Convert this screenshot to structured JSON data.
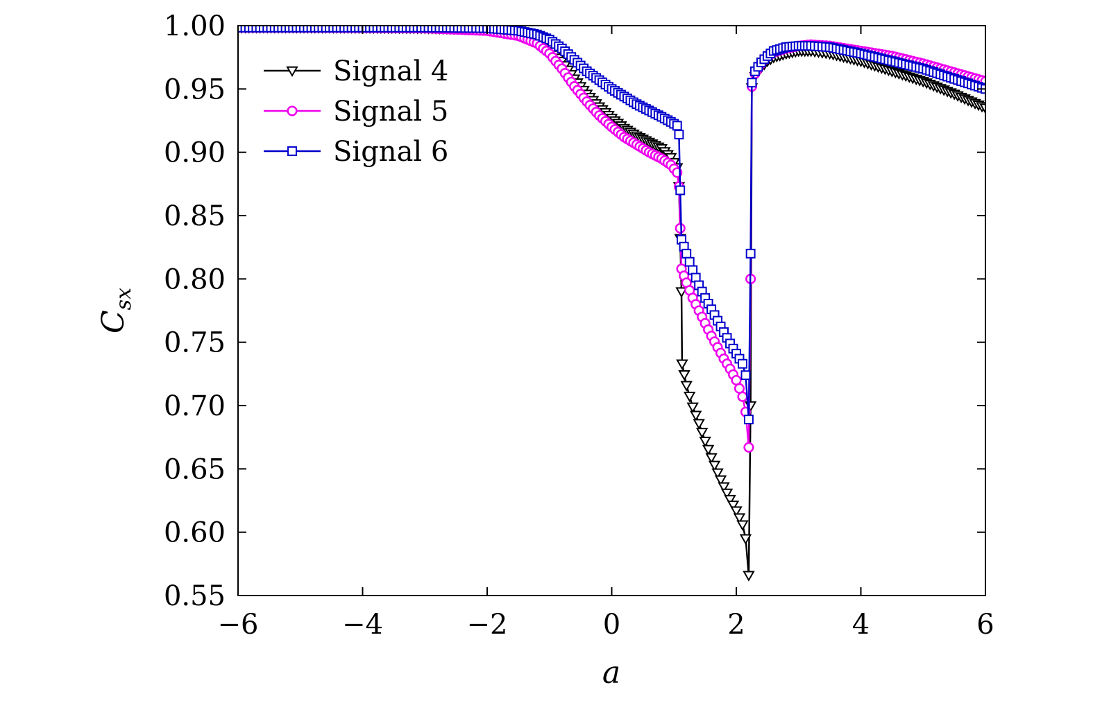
{
  "chart_data": {
    "type": "line",
    "xlabel": "a",
    "ylabel": {
      "main": "C",
      "sub": "sx"
    },
    "xlim": [
      -6,
      6
    ],
    "ylim": [
      0.55,
      1.0
    ],
    "xticks": [
      -6,
      -4,
      -2,
      0,
      2,
      4,
      6
    ],
    "xtick_labels": [
      "−6",
      "−4",
      "−2",
      "0",
      "2",
      "4",
      "6"
    ],
    "yticks": [
      0.55,
      0.6,
      0.65,
      0.7,
      0.75,
      0.8,
      0.85,
      0.9,
      0.95,
      1.0
    ],
    "ytick_labels": [
      "0.55",
      "0.60",
      "0.65",
      "0.70",
      "0.75",
      "0.80",
      "0.85",
      "0.90",
      "0.95",
      "1.00"
    ],
    "legend_position": "top-left",
    "grid": false,
    "series": [
      {
        "name": "Signal 4",
        "color": "#000000",
        "marker": "triangle-down",
        "points": [
          [
            -6.0,
            0.9985
          ],
          [
            -5.0,
            0.9985
          ],
          [
            -4.0,
            0.9983
          ],
          [
            -3.0,
            0.998
          ],
          [
            -2.0,
            0.997
          ],
          [
            -1.5,
            0.994
          ],
          [
            -1.2,
            0.989
          ],
          [
            -1.0,
            0.982
          ],
          [
            -0.8,
            0.972
          ],
          [
            -0.6,
            0.958
          ],
          [
            -0.4,
            0.946
          ],
          [
            -0.2,
            0.936
          ],
          [
            0.0,
            0.927
          ],
          [
            0.2,
            0.919
          ],
          [
            0.4,
            0.913
          ],
          [
            0.6,
            0.908
          ],
          [
            0.8,
            0.903
          ],
          [
            0.95,
            0.896
          ],
          [
            1.05,
            0.888
          ],
          [
            1.08,
            0.873
          ],
          [
            1.1,
            0.832
          ],
          [
            1.12,
            0.79
          ],
          [
            1.13,
            0.733
          ],
          [
            1.2,
            0.716
          ],
          [
            1.3,
            0.699
          ],
          [
            1.4,
            0.686
          ],
          [
            1.5,
            0.672
          ],
          [
            1.6,
            0.659
          ],
          [
            1.7,
            0.647
          ],
          [
            1.8,
            0.636
          ],
          [
            1.9,
            0.626
          ],
          [
            2.0,
            0.617
          ],
          [
            2.1,
            0.606
          ],
          [
            2.15,
            0.595
          ],
          [
            2.2,
            0.566
          ],
          [
            2.23,
            0.7
          ],
          [
            2.25,
            0.951
          ],
          [
            2.3,
            0.96
          ],
          [
            2.4,
            0.967
          ],
          [
            2.5,
            0.972
          ],
          [
            2.6,
            0.975
          ],
          [
            2.8,
            0.978
          ],
          [
            3.0,
            0.98
          ],
          [
            3.2,
            0.98
          ],
          [
            3.5,
            0.978
          ],
          [
            4.0,
            0.972
          ],
          [
            4.5,
            0.964
          ],
          [
            5.0,
            0.956
          ],
          [
            5.5,
            0.946
          ],
          [
            6.0,
            0.935
          ]
        ]
      },
      {
        "name": "Signal 5",
        "color": "#ee00ee",
        "marker": "circle",
        "points": [
          [
            -6.0,
            0.9985
          ],
          [
            -5.0,
            0.9985
          ],
          [
            -4.0,
            0.9983
          ],
          [
            -3.0,
            0.998
          ],
          [
            -2.0,
            0.996
          ],
          [
            -1.5,
            0.992
          ],
          [
            -1.2,
            0.986
          ],
          [
            -1.0,
            0.978
          ],
          [
            -0.8,
            0.966
          ],
          [
            -0.6,
            0.952
          ],
          [
            -0.4,
            0.94
          ],
          [
            -0.2,
            0.929
          ],
          [
            0.0,
            0.92
          ],
          [
            0.2,
            0.912
          ],
          [
            0.4,
            0.906
          ],
          [
            0.6,
            0.9
          ],
          [
            0.8,
            0.895
          ],
          [
            0.95,
            0.89
          ],
          [
            1.05,
            0.884
          ],
          [
            1.08,
            0.873
          ],
          [
            1.1,
            0.84
          ],
          [
            1.12,
            0.808
          ],
          [
            1.2,
            0.797
          ],
          [
            1.3,
            0.785
          ],
          [
            1.4,
            0.775
          ],
          [
            1.5,
            0.765
          ],
          [
            1.6,
            0.755
          ],
          [
            1.7,
            0.746
          ],
          [
            1.8,
            0.737
          ],
          [
            1.9,
            0.729
          ],
          [
            2.0,
            0.72
          ],
          [
            2.1,
            0.707
          ],
          [
            2.15,
            0.695
          ],
          [
            2.2,
            0.667
          ],
          [
            2.23,
            0.8
          ],
          [
            2.25,
            0.952
          ],
          [
            2.3,
            0.962
          ],
          [
            2.4,
            0.97
          ],
          [
            2.5,
            0.976
          ],
          [
            2.6,
            0.979
          ],
          [
            2.8,
            0.982
          ],
          [
            3.0,
            0.984
          ],
          [
            3.2,
            0.985
          ],
          [
            3.5,
            0.984
          ],
          [
            4.0,
            0.98
          ],
          [
            4.5,
            0.976
          ],
          [
            5.0,
            0.97
          ],
          [
            5.5,
            0.963
          ],
          [
            6.0,
            0.956
          ]
        ]
      },
      {
        "name": "Signal 6",
        "color": "#0000cc",
        "marker": "square",
        "points": [
          [
            -6.0,
            0.9985
          ],
          [
            -5.0,
            0.9985
          ],
          [
            -4.0,
            0.9985
          ],
          [
            -3.0,
            0.9985
          ],
          [
            -2.0,
            0.998
          ],
          [
            -1.5,
            0.996
          ],
          [
            -1.2,
            0.993
          ],
          [
            -1.0,
            0.989
          ],
          [
            -0.8,
            0.982
          ],
          [
            -0.6,
            0.973
          ],
          [
            -0.4,
            0.964
          ],
          [
            -0.2,
            0.957
          ],
          [
            0.0,
            0.95
          ],
          [
            0.2,
            0.944
          ],
          [
            0.4,
            0.938
          ],
          [
            0.6,
            0.933
          ],
          [
            0.8,
            0.928
          ],
          [
            0.95,
            0.924
          ],
          [
            1.05,
            0.921
          ],
          [
            1.08,
            0.914
          ],
          [
            1.1,
            0.87
          ],
          [
            1.12,
            0.831
          ],
          [
            1.2,
            0.82
          ],
          [
            1.3,
            0.807
          ],
          [
            1.4,
            0.795
          ],
          [
            1.5,
            0.785
          ],
          [
            1.6,
            0.776
          ],
          [
            1.7,
            0.767
          ],
          [
            1.8,
            0.758
          ],
          [
            1.9,
            0.749
          ],
          [
            2.0,
            0.741
          ],
          [
            2.1,
            0.733
          ],
          [
            2.15,
            0.724
          ],
          [
            2.2,
            0.689
          ],
          [
            2.23,
            0.82
          ],
          [
            2.25,
            0.955
          ],
          [
            2.3,
            0.964
          ],
          [
            2.4,
            0.971
          ],
          [
            2.5,
            0.976
          ],
          [
            2.6,
            0.98
          ],
          [
            2.8,
            0.983
          ],
          [
            3.0,
            0.984
          ],
          [
            3.2,
            0.984
          ],
          [
            3.5,
            0.983
          ],
          [
            4.0,
            0.978
          ],
          [
            4.5,
            0.972
          ],
          [
            5.0,
            0.966
          ],
          [
            5.5,
            0.958
          ],
          [
            6.0,
            0.95
          ]
        ]
      }
    ]
  }
}
